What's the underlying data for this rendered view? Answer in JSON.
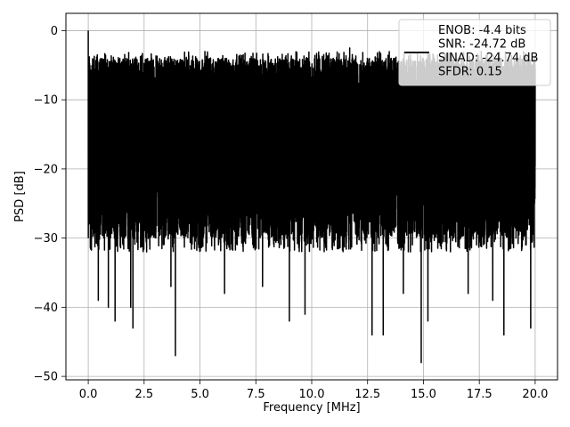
{
  "chart_data": {
    "type": "line",
    "title": "",
    "xlabel": "Frequency [MHz]",
    "ylabel": "PSD [dB]",
    "xlim": [
      -1.0,
      21.0
    ],
    "ylim": [
      -50.5,
      2.5
    ],
    "grid": true,
    "legend_position": "top-right",
    "x_ticks": [
      0.0,
      2.5,
      5.0,
      7.5,
      10.0,
      12.5,
      15.0,
      17.5,
      20.0
    ],
    "x_tick_labels": [
      "0.0",
      "2.5",
      "5.0",
      "7.5",
      "10.0",
      "12.5",
      "15.0",
      "17.5",
      "20.0"
    ],
    "y_ticks": [
      0,
      -10,
      -20,
      -30,
      -40,
      -50
    ],
    "y_tick_labels": [
      "0",
      "−10",
      "−20",
      "−30",
      "−40",
      "−50"
    ],
    "series": [
      {
        "name": "",
        "color": "#000000",
        "x_start": 0.0,
        "x_step": 0.0025,
        "noise_floor_max": -3,
        "noise_floor_min": -32,
        "peaks": [
          [
            0.0,
            0.0
          ],
          [
            7.8,
            -1.5
          ],
          [
            11.7,
            -2.5
          ],
          [
            15.35,
            -5.5
          ]
        ],
        "dips": [
          [
            0.45,
            -39
          ],
          [
            0.9,
            -40
          ],
          [
            1.2,
            -42
          ],
          [
            1.9,
            -40
          ],
          [
            2.0,
            -43
          ],
          [
            3.7,
            -37
          ],
          [
            3.9,
            -47
          ],
          [
            6.1,
            -38
          ],
          [
            7.8,
            -37
          ],
          [
            9.0,
            -42
          ],
          [
            9.7,
            -41
          ],
          [
            12.7,
            -44
          ],
          [
            13.2,
            -44
          ],
          [
            14.1,
            -38
          ],
          [
            14.9,
            -48
          ],
          [
            15.2,
            -42
          ],
          [
            17.0,
            -38
          ],
          [
            18.1,
            -39
          ],
          [
            18.6,
            -44
          ],
          [
            19.8,
            -43
          ]
        ]
      }
    ],
    "legend_lines": [
      "ENOB: -4.4 bits",
      "SNR: -24.72 dB",
      "SINAD: -24.74 dB",
      "SFDR: 0.15"
    ]
  }
}
